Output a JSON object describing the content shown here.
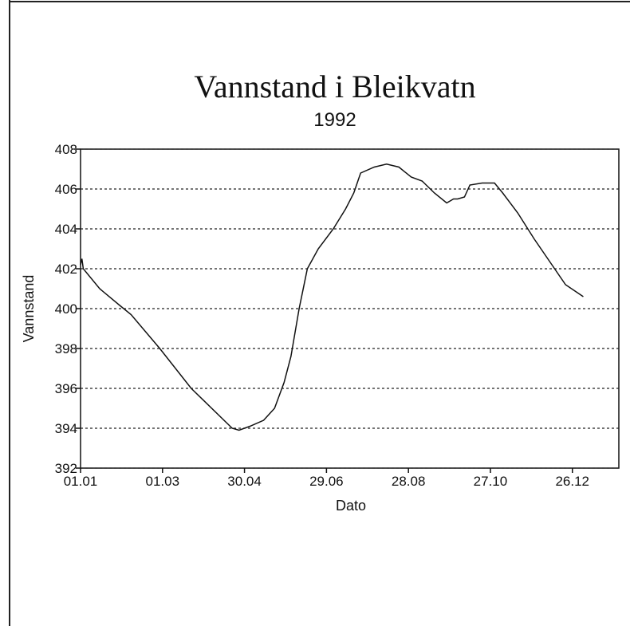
{
  "chart_data": {
    "type": "line",
    "title": "Vannstand i Bleikvatn",
    "subtitle": "1992",
    "x_label": "Dato",
    "y_label": "Vannstand",
    "x": [
      1,
      2,
      3,
      15,
      29,
      38,
      59,
      82,
      112,
      117,
      125,
      135,
      143,
      150,
      155,
      161,
      167,
      175,
      186,
      195,
      201,
      204,
      206,
      216,
      225,
      234,
      243,
      251,
      260,
      269,
      274,
      277,
      282,
      286,
      295,
      304,
      310,
      321,
      333,
      345,
      356,
      369
    ],
    "series": [
      {
        "name": "Vannstand",
        "color": "#111111",
        "values": [
          402.2,
          402.5,
          402.0,
          401.0,
          400.2,
          399.7,
          398.0,
          396.0,
          394.0,
          393.9,
          394.1,
          394.4,
          395.0,
          396.3,
          397.6,
          400.0,
          402.0,
          403.0,
          404.0,
          405.0,
          405.8,
          406.4,
          406.8,
          407.1,
          407.25,
          407.1,
          406.6,
          406.4,
          405.8,
          405.3,
          405.5,
          405.5,
          405.6,
          406.2,
          406.3,
          406.3,
          405.8,
          404.8,
          403.5,
          402.3,
          401.2,
          400.6
        ]
      }
    ],
    "xlim": [
      1,
      395
    ],
    "xticks": [
      {
        "value": 1,
        "label": "01.01"
      },
      {
        "value": 61,
        "label": "01.03"
      },
      {
        "value": 121,
        "label": "30.04"
      },
      {
        "value": 181,
        "label": "29.06"
      },
      {
        "value": 241,
        "label": "28.08"
      },
      {
        "value": 301,
        "label": "27.10"
      },
      {
        "value": 361,
        "label": "26.12"
      }
    ],
    "ylim": [
      392,
      408
    ],
    "yticks": [
      392,
      394,
      396,
      398,
      400,
      402,
      404,
      406,
      408
    ],
    "grid": true
  }
}
